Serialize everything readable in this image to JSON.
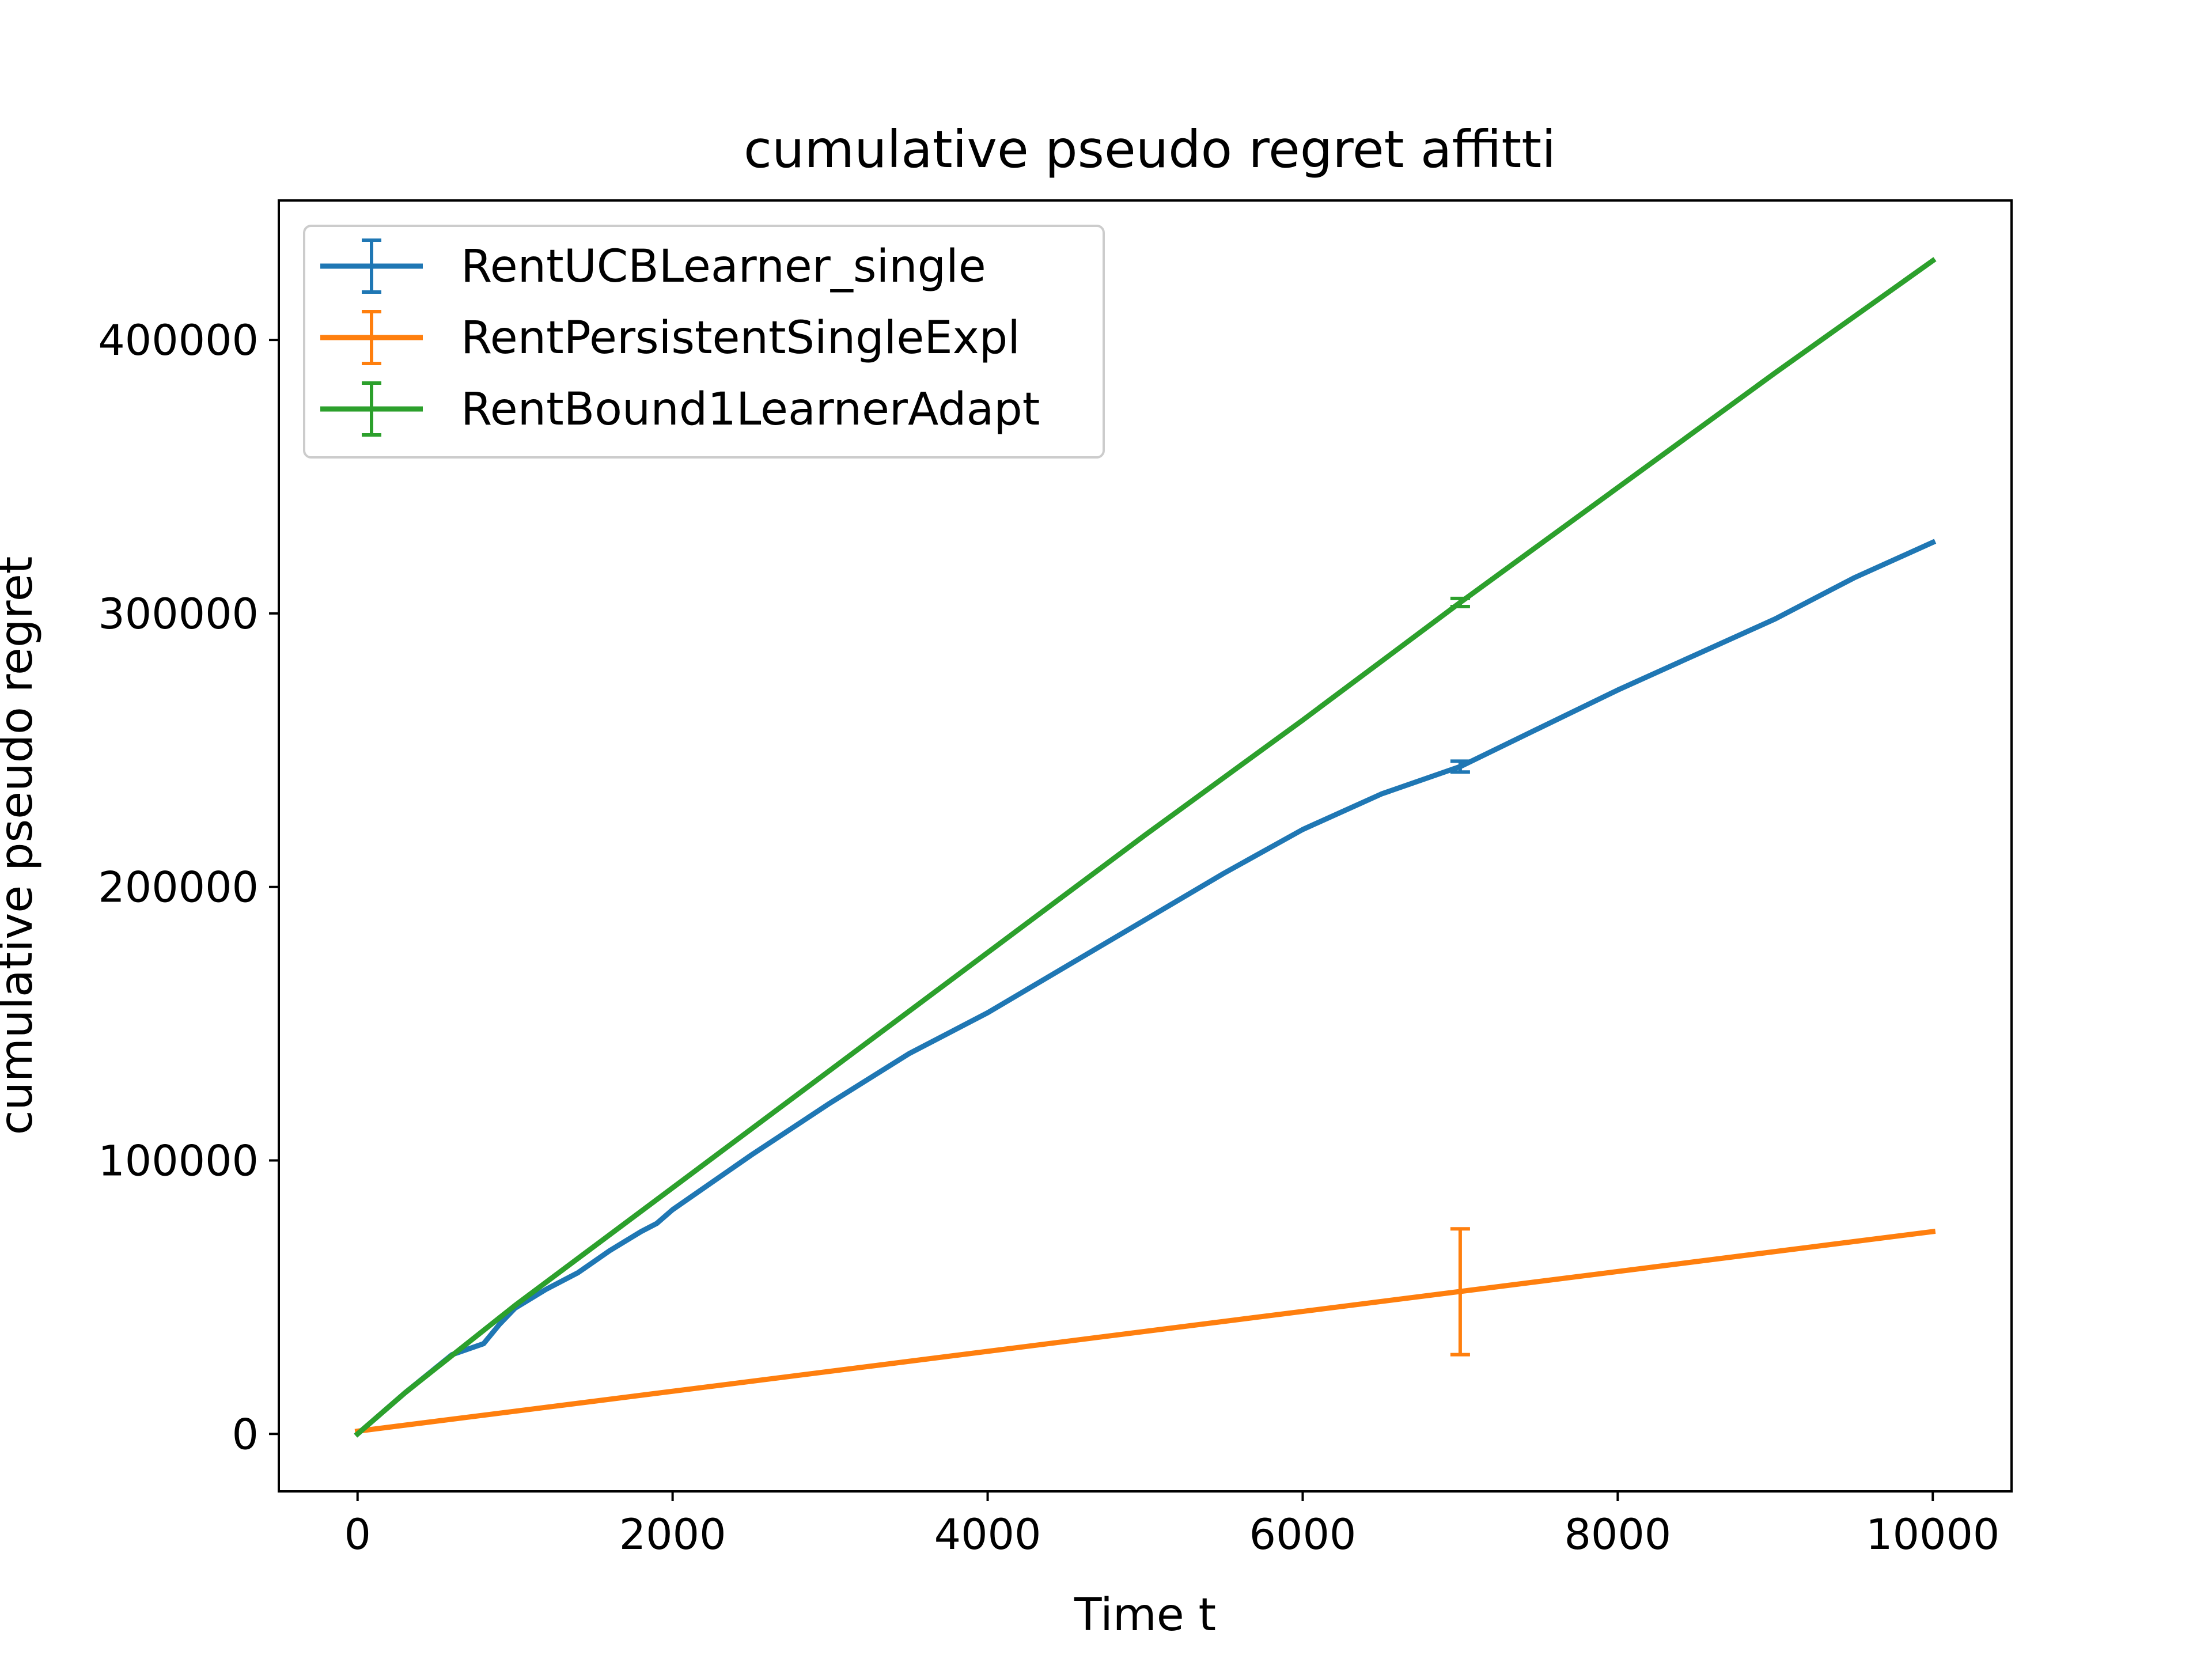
{
  "chart_data": {
    "type": "line",
    "title": "cumulative pseudo regret affitti",
    "xlabel": "Time t",
    "ylabel": "cumulative pseudo regret",
    "xlim": [
      -500,
      10500
    ],
    "ylim": [
      -21000,
      451000
    ],
    "x_ticks": [
      0,
      2000,
      4000,
      6000,
      8000,
      10000
    ],
    "x_tick_labels": [
      "0",
      "2000",
      "4000",
      "6000",
      "8000",
      "10000"
    ],
    "y_ticks": [
      0,
      100000,
      200000,
      300000,
      400000
    ],
    "y_tick_labels": [
      "0",
      "100000",
      "200000",
      "300000",
      "400000"
    ],
    "grid": false,
    "legend_position": "upper left",
    "series": [
      {
        "name": "RentUCBLearner_single",
        "color": "#1f77b4",
        "x": [
          0,
          300,
          600,
          800,
          900,
          1000,
          1200,
          1400,
          1600,
          1800,
          1900,
          2000,
          2500,
          3000,
          3500,
          4000,
          4500,
          5000,
          5500,
          6000,
          6500,
          7000,
          7500,
          8000,
          8500,
          9000,
          9500,
          10000
        ],
        "y": [
          0,
          15000,
          29000,
          33000,
          40000,
          46000,
          53000,
          59000,
          67000,
          74000,
          77000,
          82000,
          102000,
          121000,
          139000,
          154000,
          171000,
          188000,
          205000,
          221000,
          234000,
          244000,
          258000,
          272000,
          285000,
          298000,
          313000,
          326000
        ],
        "error_bar": {
          "x": 7000,
          "y": 244000,
          "err": 2000
        }
      },
      {
        "name": "RentPersistentSingleExpl",
        "color": "#ff7f0e",
        "x": [
          0,
          10000
        ],
        "y": [
          1000,
          74000
        ],
        "error_bar": {
          "x": 7000,
          "y": 52000,
          "err": 23000
        }
      },
      {
        "name": "RentBound1LearnerAdapt",
        "color": "#2ca02c",
        "x": [
          0,
          300,
          1000,
          2000,
          3000,
          4000,
          5000,
          6000,
          7000,
          8000,
          9000,
          10000
        ],
        "y": [
          0,
          15000,
          47000,
          90000,
          133000,
          176000,
          219000,
          261000,
          304000,
          346000,
          388000,
          429000
        ],
        "error_bar": {
          "x": 7000,
          "y": 304000,
          "err": 1500
        }
      }
    ]
  }
}
